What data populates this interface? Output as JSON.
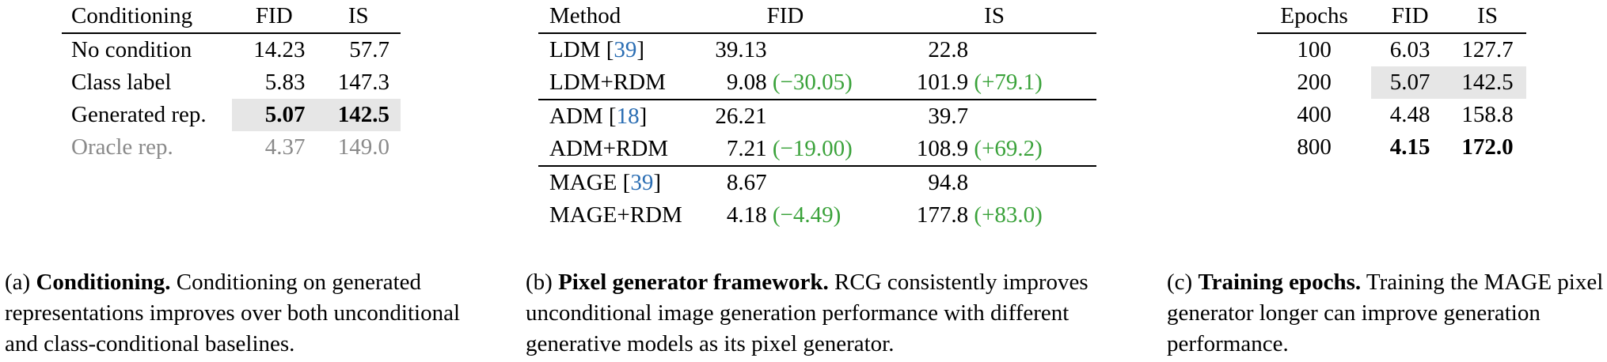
{
  "table_a": {
    "headers": [
      "Conditioning",
      "FID",
      "IS"
    ],
    "rows": [
      [
        "No condition",
        "14.23",
        "57.7"
      ],
      [
        "Class label",
        "5.83",
        "147.3"
      ],
      [
        "Generated rep.",
        "5.07",
        "142.5"
      ],
      [
        "Oracle rep.",
        "4.37",
        "149.0"
      ]
    ]
  },
  "table_b": {
    "headers": [
      "Method",
      "FID",
      "IS"
    ],
    "groups": [
      {
        "base": {
          "name": "LDM",
          "cite": "39",
          "fid": "39.13",
          "is": "22.8"
        },
        "rdm": {
          "name": "LDM+RDM",
          "fid": "9.08",
          "fid_delta": "(−30.05)",
          "is": "101.9",
          "is_delta": "(+79.1)"
        }
      },
      {
        "base": {
          "name": "ADM",
          "cite": "18",
          "fid": "26.21",
          "is": "39.7"
        },
        "rdm": {
          "name": "ADM+RDM",
          "fid": "7.21",
          "fid_delta": "(−19.00)",
          "is": "108.9",
          "is_delta": "(+69.2)"
        }
      },
      {
        "base": {
          "name": "MAGE",
          "cite": "39",
          "fid": "8.67",
          "is": "94.8"
        },
        "rdm": {
          "name": "MAGE+RDM",
          "fid": "4.18",
          "fid_delta": "(−4.49)",
          "is": "177.8",
          "is_delta": "(+83.0)"
        }
      }
    ]
  },
  "table_c": {
    "headers": [
      "Epochs",
      "FID",
      "IS"
    ],
    "rows": [
      [
        "100",
        "6.03",
        "127.7"
      ],
      [
        "200",
        "5.07",
        "142.5"
      ],
      [
        "400",
        "4.48",
        "158.8"
      ],
      [
        "800",
        "4.15",
        "172.0"
      ]
    ]
  },
  "captions": {
    "a": {
      "tag": "(a)",
      "title": "Conditioning.",
      "body": "Conditioning on generated representations improves over both unconditional and class-conditional baselines."
    },
    "b": {
      "tag": "(b)",
      "title": "Pixel generator framework.",
      "body": "RCG consistently improves unconditional image generation performance with different generative models as its pixel generator."
    },
    "c": {
      "tag": "(c)",
      "title": "Training epochs.",
      "body": "Training the MAGE pixel generator longer can improve generation performance."
    }
  },
  "colors": {
    "citation": "#2a6db3",
    "delta": "#3aa23a",
    "highlight": "#e6e6e6",
    "oracle_gray": "#8a8a8a"
  }
}
